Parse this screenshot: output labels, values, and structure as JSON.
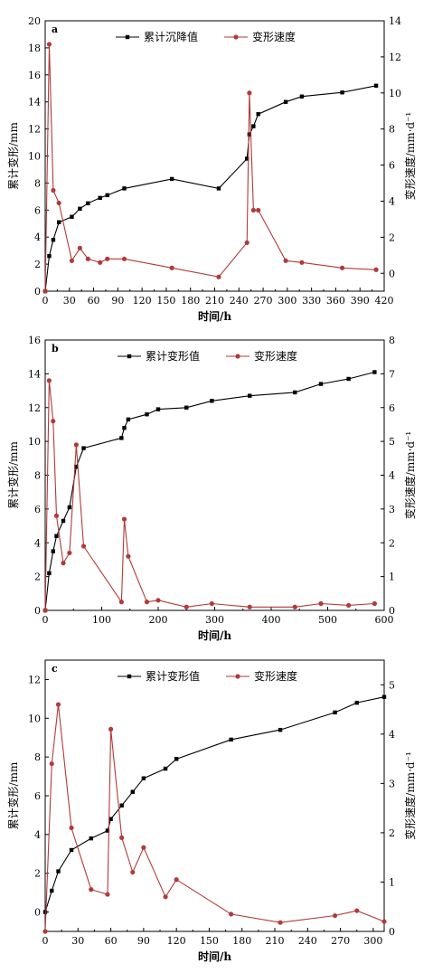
{
  "chart_data": [
    {
      "type": "line",
      "panel_label": "a",
      "xlabel": "时间/h",
      "ylabel_left": "累计变形/mm",
      "ylabel_right": "变形速度/mm·d⁻¹",
      "xlim": [
        0,
        420
      ],
      "ylim_left": [
        0,
        20
      ],
      "ylim_right": [
        -0.99,
        14
      ],
      "xticks": [
        0,
        30,
        60,
        90,
        120,
        150,
        180,
        210,
        240,
        270,
        300,
        330,
        360,
        390,
        420
      ],
      "yticks_left": [
        0,
        2,
        4,
        6,
        8,
        10,
        12,
        14,
        16,
        18,
        20
      ],
      "yticks_right": [
        0,
        2,
        4,
        6,
        8,
        10,
        12,
        14
      ],
      "legend_position": "top",
      "series": [
        {
          "name": "累计沉降值",
          "axis": "left",
          "marker": "square",
          "color": "#000000",
          "x": [
            0,
            5,
            10,
            17,
            33,
            43,
            53,
            68,
            77,
            98,
            157,
            215,
            250,
            253,
            258,
            264,
            298,
            318,
            368,
            410
          ],
          "y": [
            0,
            2.6,
            3.8,
            5.1,
            5.5,
            6.1,
            6.5,
            6.9,
            7.1,
            7.6,
            8.3,
            7.6,
            9.8,
            11.6,
            12.2,
            13.1,
            14.0,
            14.4,
            14.7,
            15.2
          ]
        },
        {
          "name": "变形速度",
          "axis": "right",
          "marker": "circle",
          "color": "#b23a3a",
          "x": [
            0,
            5,
            10,
            17,
            33,
            43,
            53,
            68,
            77,
            98,
            157,
            215,
            250,
            253,
            258,
            264,
            298,
            318,
            368,
            410
          ],
          "y": [
            -0.99,
            12.7,
            4.6,
            3.9,
            0.7,
            1.4,
            0.8,
            0.6,
            0.8,
            0.8,
            0.3,
            -0.2,
            1.7,
            10.0,
            3.5,
            3.5,
            0.7,
            0.6,
            0.3,
            0.2
          ]
        }
      ]
    },
    {
      "type": "line",
      "panel_label": "b",
      "xlabel": "时间/h",
      "ylabel_left": "累计变形/mm",
      "ylabel_right": "变形速度/mm·d⁻¹",
      "xlim": [
        0,
        600
      ],
      "ylim_left": [
        0,
        16
      ],
      "ylim_right": [
        0,
        8
      ],
      "xticks": [
        0,
        100,
        200,
        300,
        400,
        500,
        600
      ],
      "yticks_left": [
        0,
        2,
        4,
        6,
        8,
        10,
        12,
        14,
        16
      ],
      "yticks_right": [
        0,
        1,
        2,
        3,
        4,
        5,
        6,
        7,
        8
      ],
      "legend_position": "top",
      "series": [
        {
          "name": "累计变形值",
          "axis": "left",
          "marker": "square",
          "color": "#000000",
          "x": [
            0,
            7,
            14,
            20,
            32,
            43,
            55,
            68,
            135,
            140,
            147,
            180,
            200,
            250,
            295,
            362,
            442,
            488,
            537,
            583
          ],
          "y": [
            0,
            2.2,
            3.5,
            4.4,
            5.3,
            6.1,
            8.5,
            9.6,
            10.2,
            10.8,
            11.3,
            11.6,
            11.9,
            12.0,
            12.4,
            12.7,
            12.9,
            13.4,
            13.7,
            14.1
          ]
        },
        {
          "name": "变形速度",
          "axis": "right",
          "marker": "circle",
          "color": "#b23a3a",
          "x": [
            0,
            7,
            14,
            20,
            32,
            43,
            55,
            68,
            135,
            140,
            147,
            180,
            200,
            250,
            295,
            362,
            442,
            488,
            537,
            583
          ],
          "y": [
            0,
            6.8,
            5.6,
            2.8,
            1.4,
            1.7,
            4.9,
            1.9,
            0.25,
            2.7,
            1.6,
            0.25,
            0.3,
            0.1,
            0.2,
            0.1,
            0.1,
            0.2,
            0.15,
            0.2
          ]
        }
      ]
    },
    {
      "type": "line",
      "panel_label": "c",
      "xlabel": "时间/h",
      "ylabel_left": "累计变形/mm",
      "ylabel_right": "变形速度/mm·d⁻¹",
      "xlim": [
        0,
        310
      ],
      "ylim_left": [
        -1,
        13
      ],
      "ylim_right": [
        0,
        5.5
      ],
      "xticks": [
        0,
        30,
        60,
        90,
        120,
        150,
        180,
        210,
        240,
        270,
        300
      ],
      "yticks_left": [
        0,
        2,
        4,
        6,
        8,
        10,
        12
      ],
      "yticks_right": [
        0,
        1,
        2,
        3,
        4,
        5
      ],
      "legend_position": "top",
      "series": [
        {
          "name": "累计变形值",
          "axis": "left",
          "marker": "square",
          "color": "#000000",
          "x": [
            0,
            6,
            12,
            24,
            42,
            57,
            60,
            70,
            80,
            90,
            110,
            120,
            170,
            215,
            265,
            285,
            310
          ],
          "y": [
            0,
            1.1,
            2.1,
            3.2,
            3.8,
            4.2,
            4.8,
            5.5,
            6.2,
            6.9,
            7.4,
            7.9,
            8.9,
            9.4,
            10.3,
            10.8,
            11.1
          ]
        },
        {
          "name": "变形速度",
          "axis": "right",
          "marker": "circle",
          "color": "#b23a3a",
          "x": [
            0,
            6,
            12,
            24,
            42,
            57,
            60,
            70,
            80,
            90,
            110,
            120,
            170,
            215,
            265,
            285,
            310
          ],
          "y": [
            0,
            3.4,
            4.6,
            2.1,
            0.85,
            0.75,
            4.1,
            1.9,
            1.2,
            1.7,
            0.7,
            1.05,
            0.35,
            0.18,
            0.32,
            0.42,
            0.2
          ]
        }
      ]
    }
  ]
}
